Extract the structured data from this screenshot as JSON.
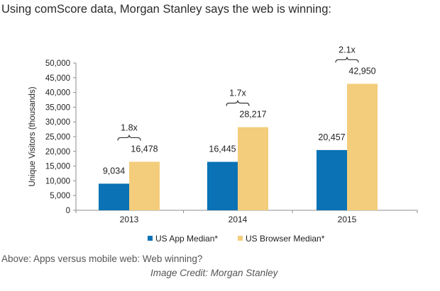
{
  "headline": "Using comScore data, Morgan Stanley says the web is winning:",
  "caption": "Above: Apps versus mobile web: Web winning?",
  "credit": "Image Credit: Morgan Stanley",
  "chart_data": {
    "type": "bar",
    "title": "",
    "xlabel": "",
    "ylabel": "Unique Visitors (thousands)",
    "ylim": [
      0,
      50000
    ],
    "yticks": [
      0,
      5000,
      10000,
      15000,
      20000,
      25000,
      30000,
      35000,
      40000,
      45000,
      50000
    ],
    "ytick_labels": [
      "0",
      "5,000",
      "10,000",
      "15,000",
      "20,000",
      "25,000",
      "30,000",
      "35,000",
      "40,000",
      "45,000",
      "50,000"
    ],
    "categories": [
      "2013",
      "2014",
      "2015"
    ],
    "series": [
      {
        "name": "US App Median*",
        "color": "#0a72b5",
        "values": [
          9034,
          16445,
          20457
        ],
        "labels": [
          "9,034",
          "16,445",
          "20,457"
        ]
      },
      {
        "name": "US Browser Median*",
        "color": "#f3cd7c",
        "values": [
          16478,
          28217,
          42950
        ],
        "labels": [
          "16,478",
          "28,217",
          "42,950"
        ]
      }
    ],
    "ratio_annotations": [
      "1.8x",
      "1.7x",
      "2.1x"
    ],
    "grid": false,
    "legend": "bottom"
  }
}
